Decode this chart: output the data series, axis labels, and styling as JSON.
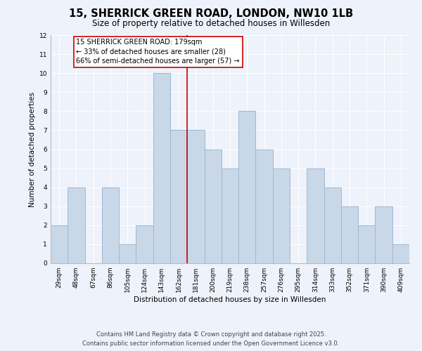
{
  "title": "15, SHERRICK GREEN ROAD, LONDON, NW10 1LB",
  "subtitle": "Size of property relative to detached houses in Willesden",
  "xlabel": "Distribution of detached houses by size in Willesden",
  "ylabel": "Number of detached properties",
  "bin_labels": [
    "29sqm",
    "48sqm",
    "67sqm",
    "86sqm",
    "105sqm",
    "124sqm",
    "143sqm",
    "162sqm",
    "181sqm",
    "200sqm",
    "219sqm",
    "238sqm",
    "257sqm",
    "276sqm",
    "295sqm",
    "314sqm",
    "333sqm",
    "352sqm",
    "371sqm",
    "390sqm",
    "409sqm"
  ],
  "bar_heights": [
    2,
    4,
    0,
    4,
    1,
    2,
    10,
    7,
    7,
    6,
    5,
    8,
    6,
    5,
    0,
    5,
    4,
    3,
    2,
    3,
    1
  ],
  "bar_color": "#c8d8e8",
  "bar_edge_color": "#a0b8d0",
  "highlight_line_color": "#cc0000",
  "ylim": [
    0,
    12
  ],
  "yticks": [
    0,
    1,
    2,
    3,
    4,
    5,
    6,
    7,
    8,
    9,
    10,
    11,
    12
  ],
  "annotation_text": "15 SHERRICK GREEN ROAD: 179sqm\n← 33% of detached houses are smaller (28)\n66% of semi-detached houses are larger (57) →",
  "annotation_box_color": "#ffffff",
  "annotation_box_edge": "#cc0000",
  "footer_line1": "Contains HM Land Registry data © Crown copyright and database right 2025.",
  "footer_line2": "Contains public sector information licensed under the Open Government Licence v3.0.",
  "bg_color": "#eef2fa",
  "grid_color": "#ffffff",
  "title_fontsize": 10.5,
  "subtitle_fontsize": 8.5,
  "axis_label_fontsize": 7.5,
  "tick_fontsize": 6.5,
  "annotation_fontsize": 7,
  "footer_fontsize": 6
}
